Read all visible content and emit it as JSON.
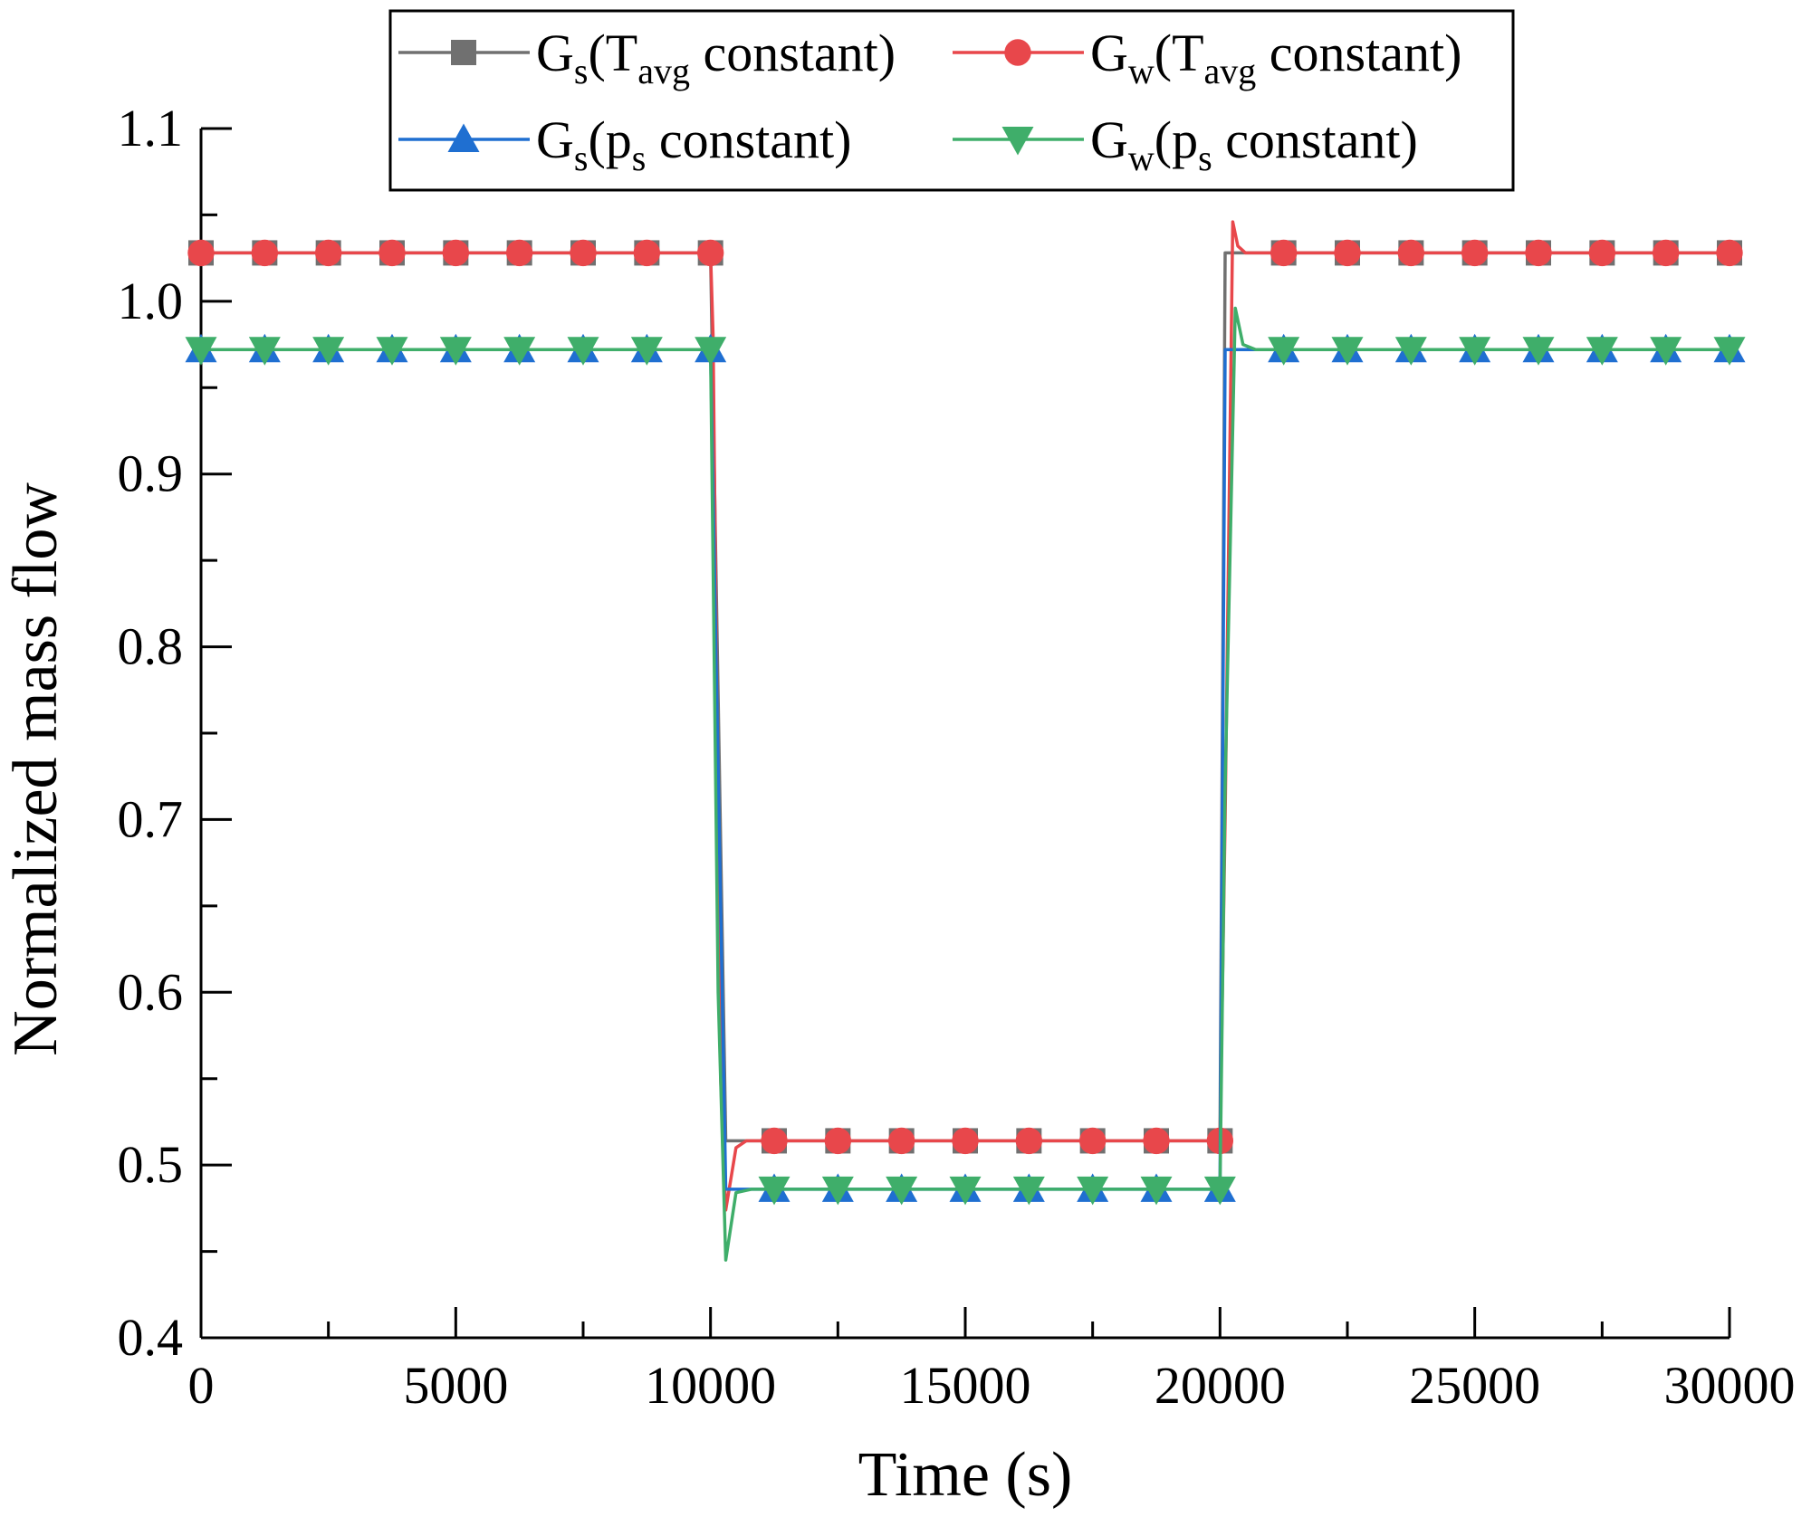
{
  "chart_data": {
    "type": "line",
    "title": "",
    "xlabel": "Time (s)",
    "ylabel": "Normalized mass flow",
    "xlim": [
      0,
      30000
    ],
    "ylim": [
      0.4,
      1.1
    ],
    "x_ticks": [
      0,
      5000,
      10000,
      15000,
      20000,
      25000,
      30000
    ],
    "x_tick_labels": [
      "0",
      "5000",
      "10000",
      "15000",
      "20000",
      "25000",
      "30000"
    ],
    "y_ticks": [
      0.4,
      0.5,
      0.6,
      0.7,
      0.8,
      0.9,
      1.0,
      1.1
    ],
    "y_tick_labels": [
      "0.4",
      "0.5",
      "0.6",
      "0.7",
      "0.8",
      "0.9",
      "1.0",
      "1.1"
    ],
    "grid": false,
    "legend_position": "top",
    "series": [
      {
        "name": "Gs(Tavg constant)",
        "legend": {
          "main": "G",
          "sub1": "s",
          "mid": "(T",
          "sub2": "avg",
          "tail": " constant)"
        },
        "color": "#707070",
        "marker": "square",
        "line_x": [
          0,
          10000,
          10300,
          10500,
          20000,
          20100,
          20300,
          30000
        ],
        "line_y": [
          1.028,
          1.028,
          0.514,
          0.514,
          0.514,
          1.028,
          1.028,
          1.028
        ],
        "marker_x": [
          0,
          1250,
          2500,
          3750,
          5000,
          6250,
          7500,
          8750,
          10000,
          11250,
          12500,
          13750,
          15000,
          16250,
          17500,
          18750,
          20000,
          21250,
          22500,
          23750,
          25000,
          26250,
          27500,
          28750,
          30000
        ],
        "marker_y": [
          1.028,
          1.028,
          1.028,
          1.028,
          1.028,
          1.028,
          1.028,
          1.028,
          1.028,
          0.514,
          0.514,
          0.514,
          0.514,
          0.514,
          0.514,
          0.514,
          0.514,
          1.028,
          1.028,
          1.028,
          1.028,
          1.028,
          1.028,
          1.028,
          1.028
        ]
      },
      {
        "name": "Gw(Tavg constant)",
        "legend": {
          "main": "G",
          "sub1": "w",
          "mid": "(T",
          "sub2": "avg",
          "tail": " constant)"
        },
        "color": "#e8474b",
        "marker": "circle",
        "line_x": [
          0,
          10000,
          10050,
          10200,
          10300,
          10500,
          10700,
          20000,
          20100,
          20250,
          20350,
          20500,
          30000
        ],
        "line_y": [
          1.028,
          1.028,
          0.98,
          0.55,
          0.474,
          0.51,
          0.514,
          0.514,
          0.7,
          1.046,
          1.032,
          1.028,
          1.028
        ],
        "marker_x": [
          0,
          1250,
          2500,
          3750,
          5000,
          6250,
          7500,
          8750,
          10000,
          11250,
          12500,
          13750,
          15000,
          16250,
          17500,
          18750,
          20000,
          21250,
          22500,
          23750,
          25000,
          26250,
          27500,
          28750,
          30000
        ],
        "marker_y": [
          1.028,
          1.028,
          1.028,
          1.028,
          1.028,
          1.028,
          1.028,
          1.028,
          1.028,
          0.514,
          0.514,
          0.514,
          0.514,
          0.514,
          0.514,
          0.514,
          0.514,
          1.028,
          1.028,
          1.028,
          1.028,
          1.028,
          1.028,
          1.028,
          1.028
        ]
      },
      {
        "name": "Gs(ps constant)",
        "legend": {
          "main": "G",
          "sub1": "s",
          "mid": "(p",
          "sub2": "s",
          "tail": " constant)"
        },
        "color": "#1f6fd1",
        "marker": "triangle-up",
        "line_x": [
          0,
          10000,
          10300,
          10500,
          20000,
          20100,
          20300,
          30000
        ],
        "line_y": [
          0.972,
          0.972,
          0.486,
          0.486,
          0.486,
          0.972,
          0.972,
          0.972
        ],
        "marker_x": [
          0,
          1250,
          2500,
          3750,
          5000,
          6250,
          7500,
          8750,
          10000,
          11250,
          12500,
          13750,
          15000,
          16250,
          17500,
          18750,
          20000,
          21250,
          22500,
          23750,
          25000,
          26250,
          27500,
          28750,
          30000
        ],
        "marker_y": [
          0.972,
          0.972,
          0.972,
          0.972,
          0.972,
          0.972,
          0.972,
          0.972,
          0.972,
          0.486,
          0.486,
          0.486,
          0.486,
          0.486,
          0.486,
          0.486,
          0.486,
          0.972,
          0.972,
          0.972,
          0.972,
          0.972,
          0.972,
          0.972,
          0.972
        ]
      },
      {
        "name": "Gw(ps constant)",
        "legend": {
          "main": "G",
          "sub1": "w",
          "mid": "(p",
          "sub2": "s",
          "tail": " constant)"
        },
        "color": "#3fae6a",
        "marker": "triangle-down",
        "line_x": [
          0,
          10000,
          10150,
          10300,
          10500,
          10800,
          20000,
          20100,
          20300,
          20450,
          20700,
          30000
        ],
        "line_y": [
          0.972,
          0.972,
          0.6,
          0.445,
          0.484,
          0.486,
          0.486,
          0.72,
          0.996,
          0.975,
          0.972,
          0.972
        ],
        "marker_x": [
          0,
          1250,
          2500,
          3750,
          5000,
          6250,
          7500,
          8750,
          10000,
          11250,
          12500,
          13750,
          15000,
          16250,
          17500,
          18750,
          20000,
          21250,
          22500,
          23750,
          25000,
          26250,
          27500,
          28750,
          30000
        ],
        "marker_y": [
          0.972,
          0.972,
          0.972,
          0.972,
          0.972,
          0.972,
          0.972,
          0.972,
          0.972,
          0.486,
          0.486,
          0.486,
          0.486,
          0.486,
          0.486,
          0.486,
          0.486,
          0.972,
          0.972,
          0.972,
          0.972,
          0.972,
          0.972,
          0.972,
          0.972
        ]
      }
    ]
  }
}
